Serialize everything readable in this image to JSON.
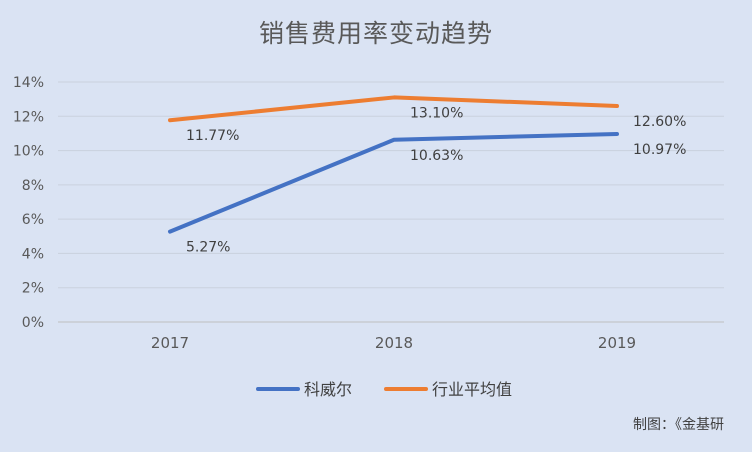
{
  "chart_data": {
    "type": "line",
    "title": "销售费用率变动趋势",
    "categories": [
      "2017",
      "2018",
      "2019"
    ],
    "y_ticks": [
      "0%",
      "2%",
      "4%",
      "6%",
      "8%",
      "10%",
      "12%",
      "14%"
    ],
    "ylim": [
      0,
      14
    ],
    "grid": true,
    "legend_position": "bottom",
    "series": [
      {
        "name": "科威尔",
        "color": "#4472c4",
        "values": [
          5.27,
          10.63,
          10.97
        ],
        "labels": [
          "5.27%",
          "10.63%",
          "10.97%"
        ]
      },
      {
        "name": "行业平均值",
        "color": "#ed7d31",
        "values": [
          11.77,
          13.1,
          12.6
        ],
        "labels": [
          "11.77%",
          "13.10%",
          "12.60%"
        ]
      }
    ]
  },
  "credit": "制图：《金基研"
}
